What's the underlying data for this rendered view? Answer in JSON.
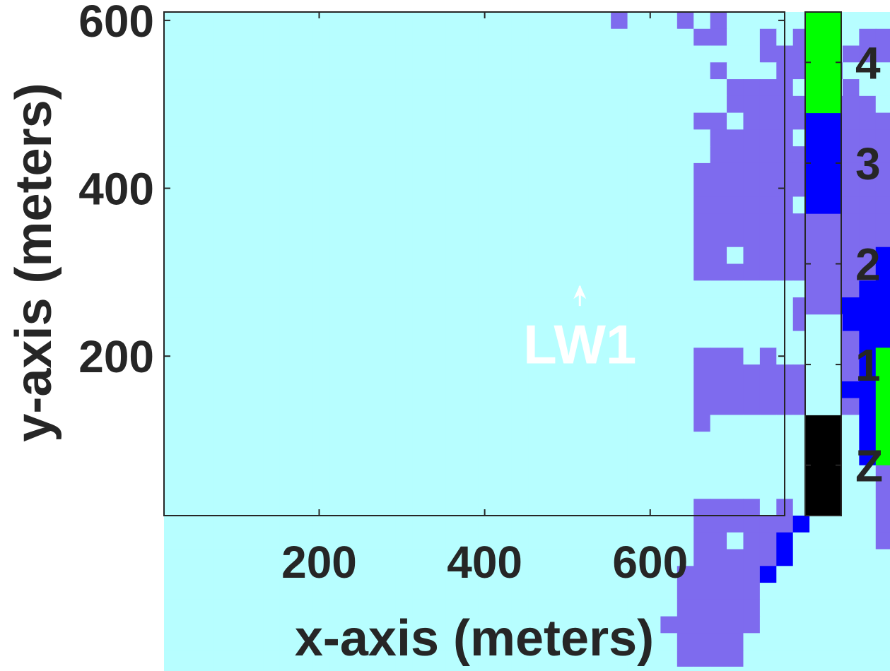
{
  "chart_data": {
    "type": "heatmap",
    "title": "",
    "xlabel": "x-axis (meters)",
    "ylabel": "y-axis (meters)",
    "xlim": [
      12.5,
      762.5
    ],
    "ylim": [
      10,
      610
    ],
    "xticks": [
      "200",
      "400",
      "600"
    ],
    "xtick_values": [
      200,
      400,
      600
    ],
    "yticks": [
      "200",
      "400",
      "600"
    ],
    "ytick_values": [
      200,
      400,
      600
    ],
    "grid": false,
    "cell_width_m": 20,
    "cell_height_m": 20,
    "x_centers_start": 22.5,
    "y_centers_start_top": 600,
    "colormap": {
      "0": "#000000",
      "1": "#b7feff",
      "2": "#7e6bee",
      "3": "#0000ff",
      "4": "#00ff00"
    },
    "colorbar": {
      "position": "right",
      "labels": [
        "Z",
        "1",
        "2",
        "3",
        "4"
      ],
      "colors": [
        "#000000",
        "#b7feff",
        "#7e6bee",
        "#0000ff",
        "#00ff00"
      ]
    },
    "rows_top_to_bottom": [
      "111111111111111111111111111211121211111111111",
      "111111111111111111111111111111112211212111221",
      "111111111111111111111111111111111111222212221",
      "111111111111111111111111111111111211122221111",
      "111111111111111111111111111111111122221212111",
      "111111111111111111111111111111111122222222211",
      "111111111111111111111111111111112212222222221",
      "111111111111111111111111111111111222221222222",
      "111111111111111111111111111111111222222222222",
      "111111111111111111111111111111112222222222222",
      "111111111111111111111111111111112222222222223",
      "111111111111111111111111111111112222221222223",
      "111111111111111111111111111111112222222222223",
      "111111111111111111111111111111112222222222223",
      "111111111111111111111111111111112212222222233",
      "111111111111111111111111111111112222222222233",
      "111111111111111111111111111111111111111222333",
      "111111111111111111111111111111111111112233333",
      "111111111111111111111111111111111111112223333",
      "111111111111111111111111111111111111111222333",
      "111111111111111111111111111111112221211222344",
      "111111111111111111111111111111112222222222344",
      "111111111111111111111111111111112222222233344",
      "111111111111111111111111111111112222222222344",
      "111111111111111111111111111111112111111111344",
      "111111111111111111111111111111111111111111344",
      "111111111111111111111111111111111111111111342",
      "111111111111111111111111111111111111111111121",
      "111111111111111111111111111111111111111111121",
      "111111111111111111111111111111112222121111121",
      "111111111111111111111111111111112222223111121",
      "111111111111111111111111111111112212231111121",
      "111111111111111111111111111111112222231111111",
      "111111111111111111111111111111122222311111111",
      "111111111111111111111111111111122222111111111",
      "111111111111111111111111111111122222111111111",
      "111111111111111111111111111111222222111111111",
      "111111111111111111111111111111122221111111111",
      "111111111111111111111111111111122221111111111",
      "111111111111111111111111111111111111111111111"
    ],
    "annotations": [
      {
        "text": "LW1",
        "x": 515,
        "y": 215,
        "arrow_to": [
          515,
          285
        ]
      }
    ]
  }
}
